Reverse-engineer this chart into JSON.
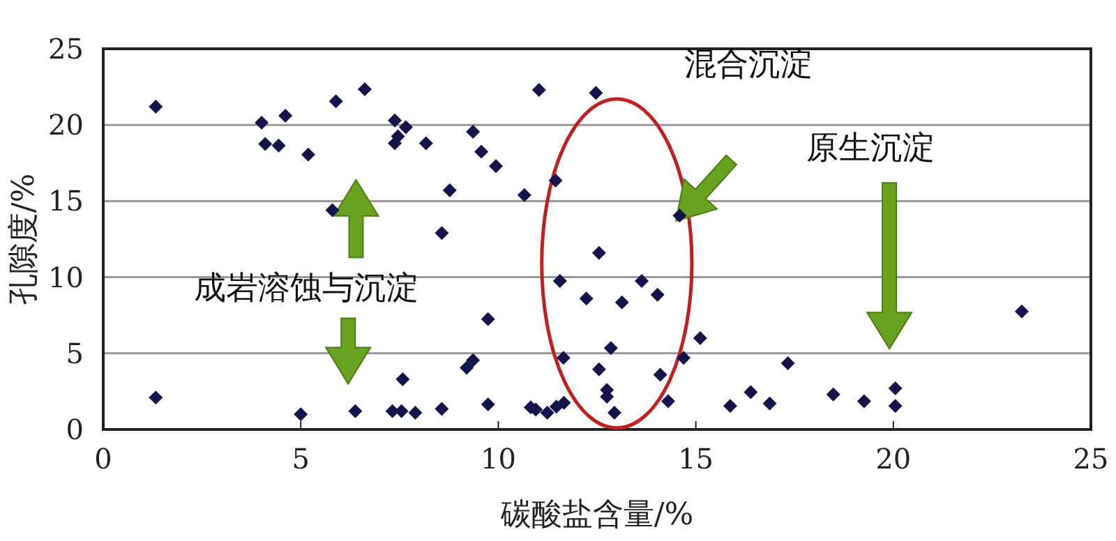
{
  "chart_data": {
    "type": "scatter",
    "xlabel": "碳酸盐含量/%",
    "ylabel": "孔隙度/%",
    "xlim": [
      0,
      25
    ],
    "ylim": [
      0,
      25
    ],
    "xticks": [
      0,
      5,
      10,
      15,
      20,
      25
    ],
    "yticks": [
      0,
      5,
      10,
      15,
      20,
      25
    ],
    "grid": "y",
    "marker": "diamond",
    "annotations": [
      "混合沉淀",
      "原生沉淀",
      "成岩溶蚀与沉淀"
    ],
    "series": [
      {
        "color": "#14144a",
        "x": [
          1.33,
          4.01,
          4.61,
          4.1,
          4.44,
          5.19,
          5.89,
          6.62,
          7.38,
          7.66,
          7.46,
          7.38,
          8.17,
          5.8,
          8.77,
          8.57,
          1.33,
          5.0,
          6.38,
          7.32,
          7.55,
          7.9,
          7.58,
          8.57,
          11.03,
          12.47,
          9.36,
          9.57,
          9.94,
          10.66,
          11.45,
          14.59,
          12.55,
          11.56,
          13.63,
          14.03,
          12.23,
          13.13,
          9.74,
          15.11,
          12.85,
          11.65,
          14.69,
          9.2,
          9.36,
          12.55,
          14.1,
          12.75,
          12.75,
          17.33,
          16.39,
          15.87,
          16.87,
          14.3,
          12.94,
          9.74,
          10.82,
          10.95,
          11.24,
          11.47,
          11.66,
          23.25,
          18.48,
          19.26,
          20.05,
          20.05
        ],
        "values": [
          21.2,
          20.15,
          20.6,
          18.75,
          18.65,
          18.05,
          21.55,
          22.35,
          20.3,
          19.85,
          19.25,
          18.8,
          18.8,
          14.4,
          15.7,
          12.9,
          2.1,
          1.0,
          1.2,
          1.2,
          1.2,
          1.1,
          3.3,
          1.35,
          22.3,
          22.1,
          19.55,
          18.25,
          17.3,
          15.4,
          16.35,
          14.05,
          11.6,
          9.75,
          9.75,
          8.85,
          8.6,
          8.35,
          7.25,
          6.0,
          5.35,
          4.7,
          4.7,
          4.05,
          4.55,
          3.95,
          3.6,
          2.6,
          2.15,
          4.35,
          2.45,
          1.55,
          1.7,
          1.85,
          1.1,
          1.65,
          1.45,
          1.3,
          1.1,
          1.5,
          1.75,
          7.75,
          2.3,
          1.85,
          2.7,
          1.55
        ]
      }
    ]
  }
}
